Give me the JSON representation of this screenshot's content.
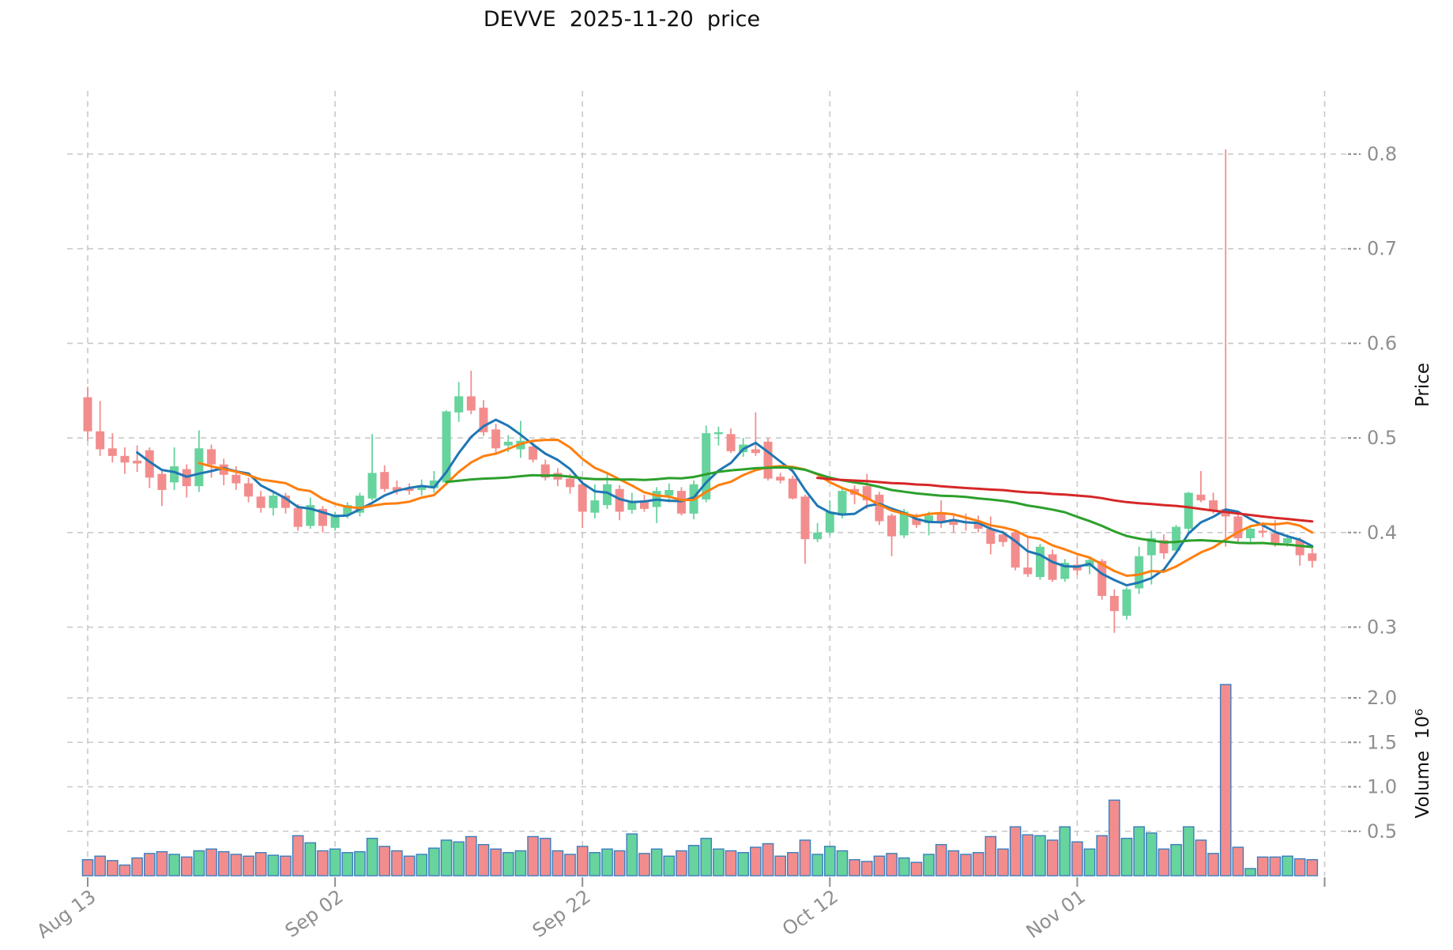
{
  "title": "DEVVE  2025-11-20  price",
  "colors": {
    "background": "#ffffff",
    "up": "#67d39d",
    "down": "#f38d8d",
    "volume_edge": "#3a7ebf",
    "grid": "#c9c9c9",
    "tick_label": "#8f8f8f",
    "axis_title": "#111111",
    "ma_colors": [
      "#1f77b4",
      "#ff7f0e",
      "#2ca02c",
      "#d62728"
    ]
  },
  "chart_data": {
    "type": "candlestick+volume",
    "title": "DEVVE  2025-11-20  price",
    "ylabel_price": "Price",
    "ylabel_volume": "Volume  10⁶",
    "price_axis_ticks": [
      0.8,
      0.7,
      0.6,
      0.5,
      0.4,
      0.3
    ],
    "volume_axis_ticks": [
      2.0,
      1.5,
      1.0,
      0.5
    ],
    "volume_unit": 1000000,
    "x_tick_labels": [
      "Aug 13",
      "Sep 02",
      "Sep 22",
      "Oct 12",
      "Nov 01"
    ],
    "x_tick_day_index": [
      0,
      20,
      40,
      60,
      80,
      100
    ],
    "grid": true,
    "legend": "none",
    "moving_averages": [
      {
        "period": 5,
        "color_index": 0
      },
      {
        "period": 10,
        "color_index": 1
      },
      {
        "period": 30,
        "color_index": 2
      },
      {
        "period": 60,
        "color_index": 3
      }
    ],
    "columns": [
      "date",
      "open",
      "high",
      "low",
      "close",
      "volume_millions"
    ],
    "candles": [
      [
        "2025-08-13",
        0.543,
        0.554,
        0.497,
        0.507,
        0.18
      ],
      [
        "2025-08-14",
        0.507,
        0.539,
        0.481,
        0.488,
        0.22
      ],
      [
        "2025-08-15",
        0.489,
        0.505,
        0.474,
        0.481,
        0.17
      ],
      [
        "2025-08-16",
        0.481,
        0.49,
        0.462,
        0.474,
        0.12
      ],
      [
        "2025-08-17",
        0.476,
        0.492,
        0.464,
        0.473,
        0.2
      ],
      [
        "2025-08-18",
        0.487,
        0.49,
        0.447,
        0.458,
        0.25
      ],
      [
        "2025-08-19",
        0.462,
        0.465,
        0.428,
        0.445,
        0.27
      ],
      [
        "2025-08-20",
        0.453,
        0.49,
        0.445,
        0.47,
        0.24
      ],
      [
        "2025-08-21",
        0.467,
        0.472,
        0.437,
        0.449,
        0.21
      ],
      [
        "2025-08-22",
        0.449,
        0.508,
        0.443,
        0.489,
        0.28
      ],
      [
        "2025-08-23",
        0.488,
        0.493,
        0.458,
        0.472,
        0.3
      ],
      [
        "2025-08-24",
        0.472,
        0.478,
        0.45,
        0.461,
        0.27
      ],
      [
        "2025-08-25",
        0.461,
        0.47,
        0.445,
        0.452,
        0.24
      ],
      [
        "2025-08-26",
        0.452,
        0.458,
        0.432,
        0.438,
        0.22
      ],
      [
        "2025-08-27",
        0.438,
        0.444,
        0.421,
        0.426,
        0.26
      ],
      [
        "2025-08-28",
        0.426,
        0.443,
        0.418,
        0.439,
        0.23
      ],
      [
        "2025-08-29",
        0.439,
        0.442,
        0.42,
        0.426,
        0.22
      ],
      [
        "2025-08-30",
        0.426,
        0.43,
        0.402,
        0.406,
        0.45
      ],
      [
        "2025-08-31",
        0.407,
        0.437,
        0.404,
        0.429,
        0.37
      ],
      [
        "2025-09-01",
        0.425,
        0.428,
        0.4,
        0.407,
        0.28
      ],
      [
        "2025-09-02",
        0.405,
        0.422,
        0.402,
        0.419,
        0.3
      ],
      [
        "2025-09-03",
        0.419,
        0.432,
        0.415,
        0.429,
        0.26
      ],
      [
        "2025-09-04",
        0.421,
        0.442,
        0.417,
        0.439,
        0.27
      ],
      [
        "2025-09-05",
        0.436,
        0.504,
        0.434,
        0.463,
        0.42
      ],
      [
        "2025-09-06",
        0.464,
        0.471,
        0.443,
        0.446,
        0.33
      ],
      [
        "2025-09-07",
        0.448,
        0.455,
        0.44,
        0.444,
        0.28
      ],
      [
        "2025-09-08",
        0.447,
        0.452,
        0.44,
        0.444,
        0.22
      ],
      [
        "2025-09-09",
        0.445,
        0.456,
        0.439,
        0.449,
        0.24
      ],
      [
        "2025-09-10",
        0.447,
        0.465,
        0.442,
        0.455,
        0.31
      ],
      [
        "2025-09-11",
        0.453,
        0.529,
        0.45,
        0.528,
        0.4
      ],
      [
        "2025-09-12",
        0.527,
        0.559,
        0.517,
        0.544,
        0.38
      ],
      [
        "2025-09-13",
        0.544,
        0.571,
        0.525,
        0.529,
        0.44
      ],
      [
        "2025-09-14",
        0.532,
        0.54,
        0.502,
        0.506,
        0.35
      ],
      [
        "2025-09-15",
        0.509,
        0.515,
        0.482,
        0.489,
        0.3
      ],
      [
        "2025-09-16",
        0.492,
        0.503,
        0.485,
        0.496,
        0.26
      ],
      [
        "2025-09-17",
        0.488,
        0.518,
        0.479,
        0.497,
        0.28
      ],
      [
        "2025-09-18",
        0.491,
        0.497,
        0.474,
        0.477,
        0.44
      ],
      [
        "2025-09-19",
        0.472,
        0.477,
        0.455,
        0.458,
        0.42
      ],
      [
        "2025-09-20",
        0.463,
        0.468,
        0.449,
        0.456,
        0.28
      ],
      [
        "2025-09-21",
        0.457,
        0.462,
        0.441,
        0.448,
        0.24
      ],
      [
        "2025-09-22",
        0.451,
        0.455,
        0.405,
        0.422,
        0.33
      ],
      [
        "2025-09-23",
        0.421,
        0.451,
        0.415,
        0.434,
        0.26
      ],
      [
        "2025-09-24",
        0.429,
        0.464,
        0.425,
        0.451,
        0.3
      ],
      [
        "2025-09-25",
        0.446,
        0.45,
        0.413,
        0.422,
        0.28
      ],
      [
        "2025-09-26",
        0.424,
        0.442,
        0.42,
        0.432,
        0.47
      ],
      [
        "2025-09-27",
        0.434,
        0.44,
        0.422,
        0.425,
        0.25
      ],
      [
        "2025-09-28",
        0.427,
        0.448,
        0.41,
        0.444,
        0.3
      ],
      [
        "2025-09-29",
        0.439,
        0.452,
        0.432,
        0.445,
        0.22
      ],
      [
        "2025-09-30",
        0.444,
        0.448,
        0.418,
        0.42,
        0.28
      ],
      [
        "2025-10-01",
        0.42,
        0.455,
        0.414,
        0.451,
        0.34
      ],
      [
        "2025-10-02",
        0.435,
        0.513,
        0.432,
        0.505,
        0.42
      ],
      [
        "2025-10-03",
        0.504,
        0.512,
        0.492,
        0.506,
        0.3
      ],
      [
        "2025-10-04",
        0.504,
        0.51,
        0.484,
        0.486,
        0.28
      ],
      [
        "2025-10-05",
        0.485,
        0.5,
        0.48,
        0.493,
        0.26
      ],
      [
        "2025-10-06",
        0.488,
        0.527,
        0.481,
        0.484,
        0.32
      ],
      [
        "2025-10-07",
        0.496,
        0.5,
        0.455,
        0.457,
        0.36
      ],
      [
        "2025-10-08",
        0.459,
        0.463,
        0.452,
        0.455,
        0.22
      ],
      [
        "2025-10-09",
        0.457,
        0.46,
        0.435,
        0.436,
        0.26
      ],
      [
        "2025-10-10",
        0.438,
        0.44,
        0.367,
        0.393,
        0.4
      ],
      [
        "2025-10-11",
        0.393,
        0.41,
        0.39,
        0.4,
        0.24
      ],
      [
        "2025-10-12",
        0.4,
        0.434,
        0.397,
        0.422,
        0.33
      ],
      [
        "2025-10-13",
        0.418,
        0.448,
        0.415,
        0.444,
        0.28
      ],
      [
        "2025-10-14",
        0.446,
        0.45,
        0.43,
        0.44,
        0.18
      ],
      [
        "2025-10-15",
        0.449,
        0.462,
        0.425,
        0.434,
        0.16
      ],
      [
        "2025-10-16",
        0.44,
        0.443,
        0.408,
        0.412,
        0.22
      ],
      [
        "2025-10-17",
        0.418,
        0.42,
        0.375,
        0.396,
        0.25
      ],
      [
        "2025-10-18",
        0.397,
        0.425,
        0.394,
        0.422,
        0.2
      ],
      [
        "2025-10-19",
        0.415,
        0.42,
        0.405,
        0.408,
        0.15
      ],
      [
        "2025-10-20",
        0.41,
        0.422,
        0.397,
        0.418,
        0.24
      ],
      [
        "2025-10-21",
        0.42,
        0.434,
        0.405,
        0.41,
        0.35
      ],
      [
        "2025-10-22",
        0.414,
        0.418,
        0.4,
        0.408,
        0.28
      ],
      [
        "2025-10-23",
        0.412,
        0.42,
        0.402,
        0.41,
        0.24
      ],
      [
        "2025-10-24",
        0.411,
        0.418,
        0.4,
        0.404,
        0.26
      ],
      [
        "2025-10-25",
        0.404,
        0.417,
        0.377,
        0.388,
        0.44
      ],
      [
        "2025-10-26",
        0.398,
        0.402,
        0.385,
        0.39,
        0.3
      ],
      [
        "2025-10-27",
        0.4,
        0.402,
        0.36,
        0.363,
        0.55
      ],
      [
        "2025-10-28",
        0.363,
        0.397,
        0.353,
        0.356,
        0.46
      ],
      [
        "2025-10-29",
        0.353,
        0.388,
        0.35,
        0.385,
        0.45
      ],
      [
        "2025-10-30",
        0.377,
        0.382,
        0.348,
        0.35,
        0.4
      ],
      [
        "2025-10-31",
        0.351,
        0.372,
        0.348,
        0.368,
        0.55
      ],
      [
        "2025-11-01",
        0.366,
        0.375,
        0.355,
        0.36,
        0.38
      ],
      [
        "2025-11-02",
        0.364,
        0.374,
        0.356,
        0.371,
        0.3
      ],
      [
        "2025-11-03",
        0.37,
        0.372,
        0.329,
        0.333,
        0.45
      ],
      [
        "2025-11-04",
        0.333,
        0.34,
        0.294,
        0.317,
        0.85
      ],
      [
        "2025-11-05",
        0.312,
        0.342,
        0.308,
        0.34,
        0.42
      ],
      [
        "2025-11-06",
        0.341,
        0.385,
        0.335,
        0.375,
        0.55
      ],
      [
        "2025-11-07",
        0.376,
        0.402,
        0.345,
        0.394,
        0.48
      ],
      [
        "2025-11-08",
        0.392,
        0.398,
        0.372,
        0.378,
        0.3
      ],
      [
        "2025-11-09",
        0.381,
        0.408,
        0.378,
        0.406,
        0.35
      ],
      [
        "2025-11-10",
        0.404,
        0.443,
        0.4,
        0.442,
        0.55
      ],
      [
        "2025-11-11",
        0.44,
        0.465,
        0.432,
        0.434,
        0.4
      ],
      [
        "2025-11-12",
        0.434,
        0.442,
        0.42,
        0.423,
        0.25
      ],
      [
        "2025-11-13",
        0.425,
        0.805,
        0.385,
        0.417,
        2.15
      ],
      [
        "2025-11-14",
        0.417,
        0.42,
        0.39,
        0.394,
        0.32
      ],
      [
        "2025-11-15",
        0.394,
        0.408,
        0.39,
        0.404,
        0.08
      ],
      [
        "2025-11-16",
        0.402,
        0.411,
        0.395,
        0.4,
        0.21
      ],
      [
        "2025-11-17",
        0.399,
        0.413,
        0.385,
        0.388,
        0.21
      ],
      [
        "2025-11-18",
        0.389,
        0.398,
        0.385,
        0.394,
        0.22
      ],
      [
        "2025-11-19",
        0.392,
        0.395,
        0.365,
        0.376,
        0.19
      ],
      [
        "2025-11-20",
        0.378,
        0.383,
        0.363,
        0.37,
        0.18
      ]
    ]
  }
}
